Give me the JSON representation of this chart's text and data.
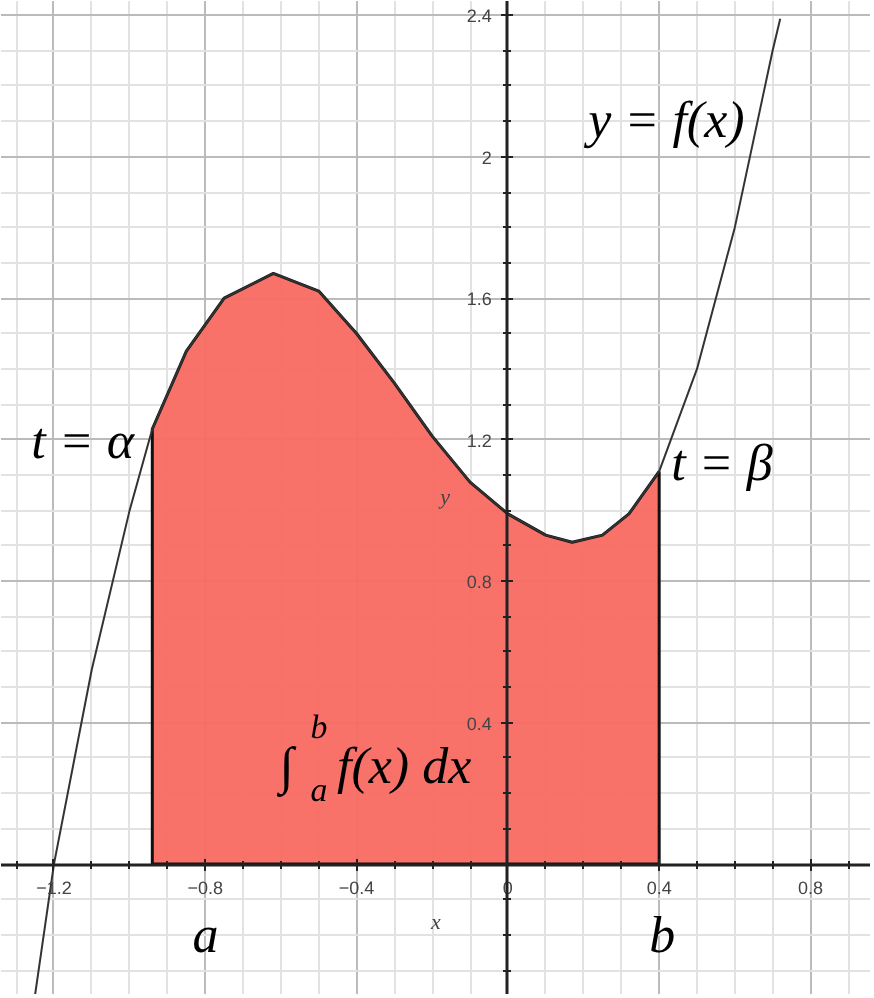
{
  "chart_data": {
    "type": "line",
    "xlabel": "x",
    "ylabel": "y",
    "xlim": [
      -1.34,
      0.96
    ],
    "ylim": [
      -0.37,
      2.44
    ],
    "xticks": [
      -1.2,
      -0.8,
      -0.4,
      0,
      0.4,
      0.8
    ],
    "yticks": [
      0.4,
      0.8,
      1.2,
      1.6,
      2,
      2.4
    ],
    "grid": true,
    "series": [
      {
        "type": "area",
        "color": "#f96a62",
        "x": [
          -0.94,
          -0.85,
          -0.75,
          -0.62,
          -0.5,
          -0.4,
          -0.3,
          -0.2,
          -0.1,
          0,
          0.1,
          0.17,
          0.25,
          0.32,
          0.4
        ],
        "values": [
          1.23,
          1.45,
          1.6,
          1.67,
          1.62,
          1.5,
          1.36,
          1.21,
          1.08,
          0.99,
          0.93,
          0.91,
          0.93,
          0.99,
          1.11
        ]
      },
      {
        "color": "#333333",
        "x": [
          -1.25,
          -1.2,
          -1.1,
          -1.0,
          -0.94,
          -0.85,
          -0.75,
          -0.62,
          -0.5,
          -0.4,
          -0.3,
          -0.2,
          -0.1,
          0,
          0.1,
          0.17,
          0.25,
          0.32,
          0.4,
          0.5,
          0.6,
          0.7,
          0.72
        ],
        "values": [
          -0.37,
          0,
          0.55,
          1.0,
          1.23,
          1.45,
          1.6,
          1.67,
          1.62,
          1.5,
          1.36,
          1.21,
          1.08,
          0.99,
          0.93,
          0.91,
          0.93,
          0.99,
          1.11,
          1.4,
          1.8,
          2.3,
          2.39
        ]
      }
    ],
    "annotations": [
      "y = f(x)",
      {
        "text": "t = α",
        "x": -0.94,
        "y": 1.23
      },
      {
        "text": "t = β",
        "x": 0.4,
        "y": 1.11
      },
      "∫$^{b}$$_{a}$ f(x) dx",
      "a",
      "b"
    ]
  }
}
